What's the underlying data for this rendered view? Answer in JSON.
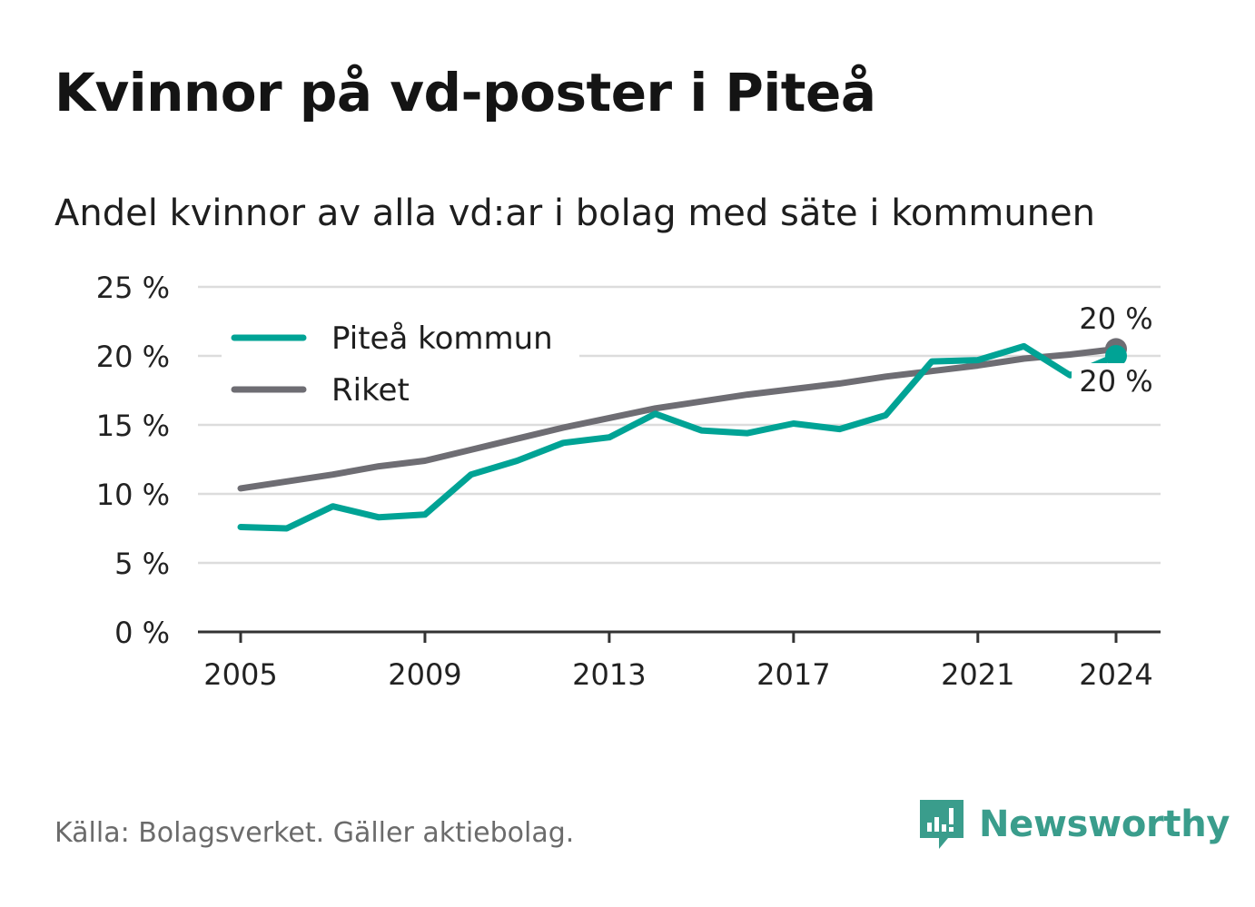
{
  "title": "Kvinnor på vd-poster i Piteå",
  "subtitle": "Andel kvinnor av alla vd:ar i bolag med säte i kommunen",
  "source": "Källa: Bolagsverket. Gäller aktiebolag.",
  "brand": {
    "name": "Newsworthy",
    "logo_icon": "bar-chart-speech-bubble-icon"
  },
  "colors": {
    "pitea": "#00a395",
    "riket": "#6e6d73",
    "grid": "#dcdcdc",
    "axis": "#333333",
    "brand": "#3a9d8c"
  },
  "chart_data": {
    "type": "line",
    "x": [
      2005,
      2006,
      2007,
      2008,
      2009,
      2010,
      2011,
      2012,
      2013,
      2014,
      2015,
      2016,
      2017,
      2018,
      2019,
      2020,
      2021,
      2022,
      2023,
      2024
    ],
    "series": [
      {
        "name": "Piteå kommun",
        "values": [
          7.6,
          7.5,
          9.1,
          8.3,
          8.5,
          11.4,
          12.4,
          13.7,
          14.1,
          15.8,
          14.6,
          14.4,
          15.1,
          14.7,
          15.7,
          19.6,
          19.7,
          20.7,
          18.6,
          20.0
        ],
        "end_label": "20 %"
      },
      {
        "name": "Riket",
        "values": [
          10.4,
          10.9,
          11.4,
          12.0,
          12.4,
          13.2,
          14.0,
          14.8,
          15.5,
          16.2,
          16.7,
          17.2,
          17.6,
          18.0,
          18.5,
          18.9,
          19.3,
          19.8,
          20.1,
          20.5
        ],
        "end_label": "20 %"
      }
    ],
    "y_ticks": [
      0,
      5,
      10,
      15,
      20,
      25
    ],
    "y_tick_labels": [
      "0 %",
      "5 %",
      "10 %",
      "15 %",
      "20 %",
      "25 %"
    ],
    "x_ticks": [
      2005,
      2009,
      2013,
      2017,
      2021,
      2024
    ],
    "x_tick_labels": [
      "2005",
      "2009",
      "2013",
      "2017",
      "2021",
      "2024"
    ],
    "ylim": [
      0,
      25
    ],
    "xlim": [
      2005,
      2024
    ],
    "grid": true,
    "legend": "top-left",
    "xlabel": "",
    "ylabel": ""
  }
}
